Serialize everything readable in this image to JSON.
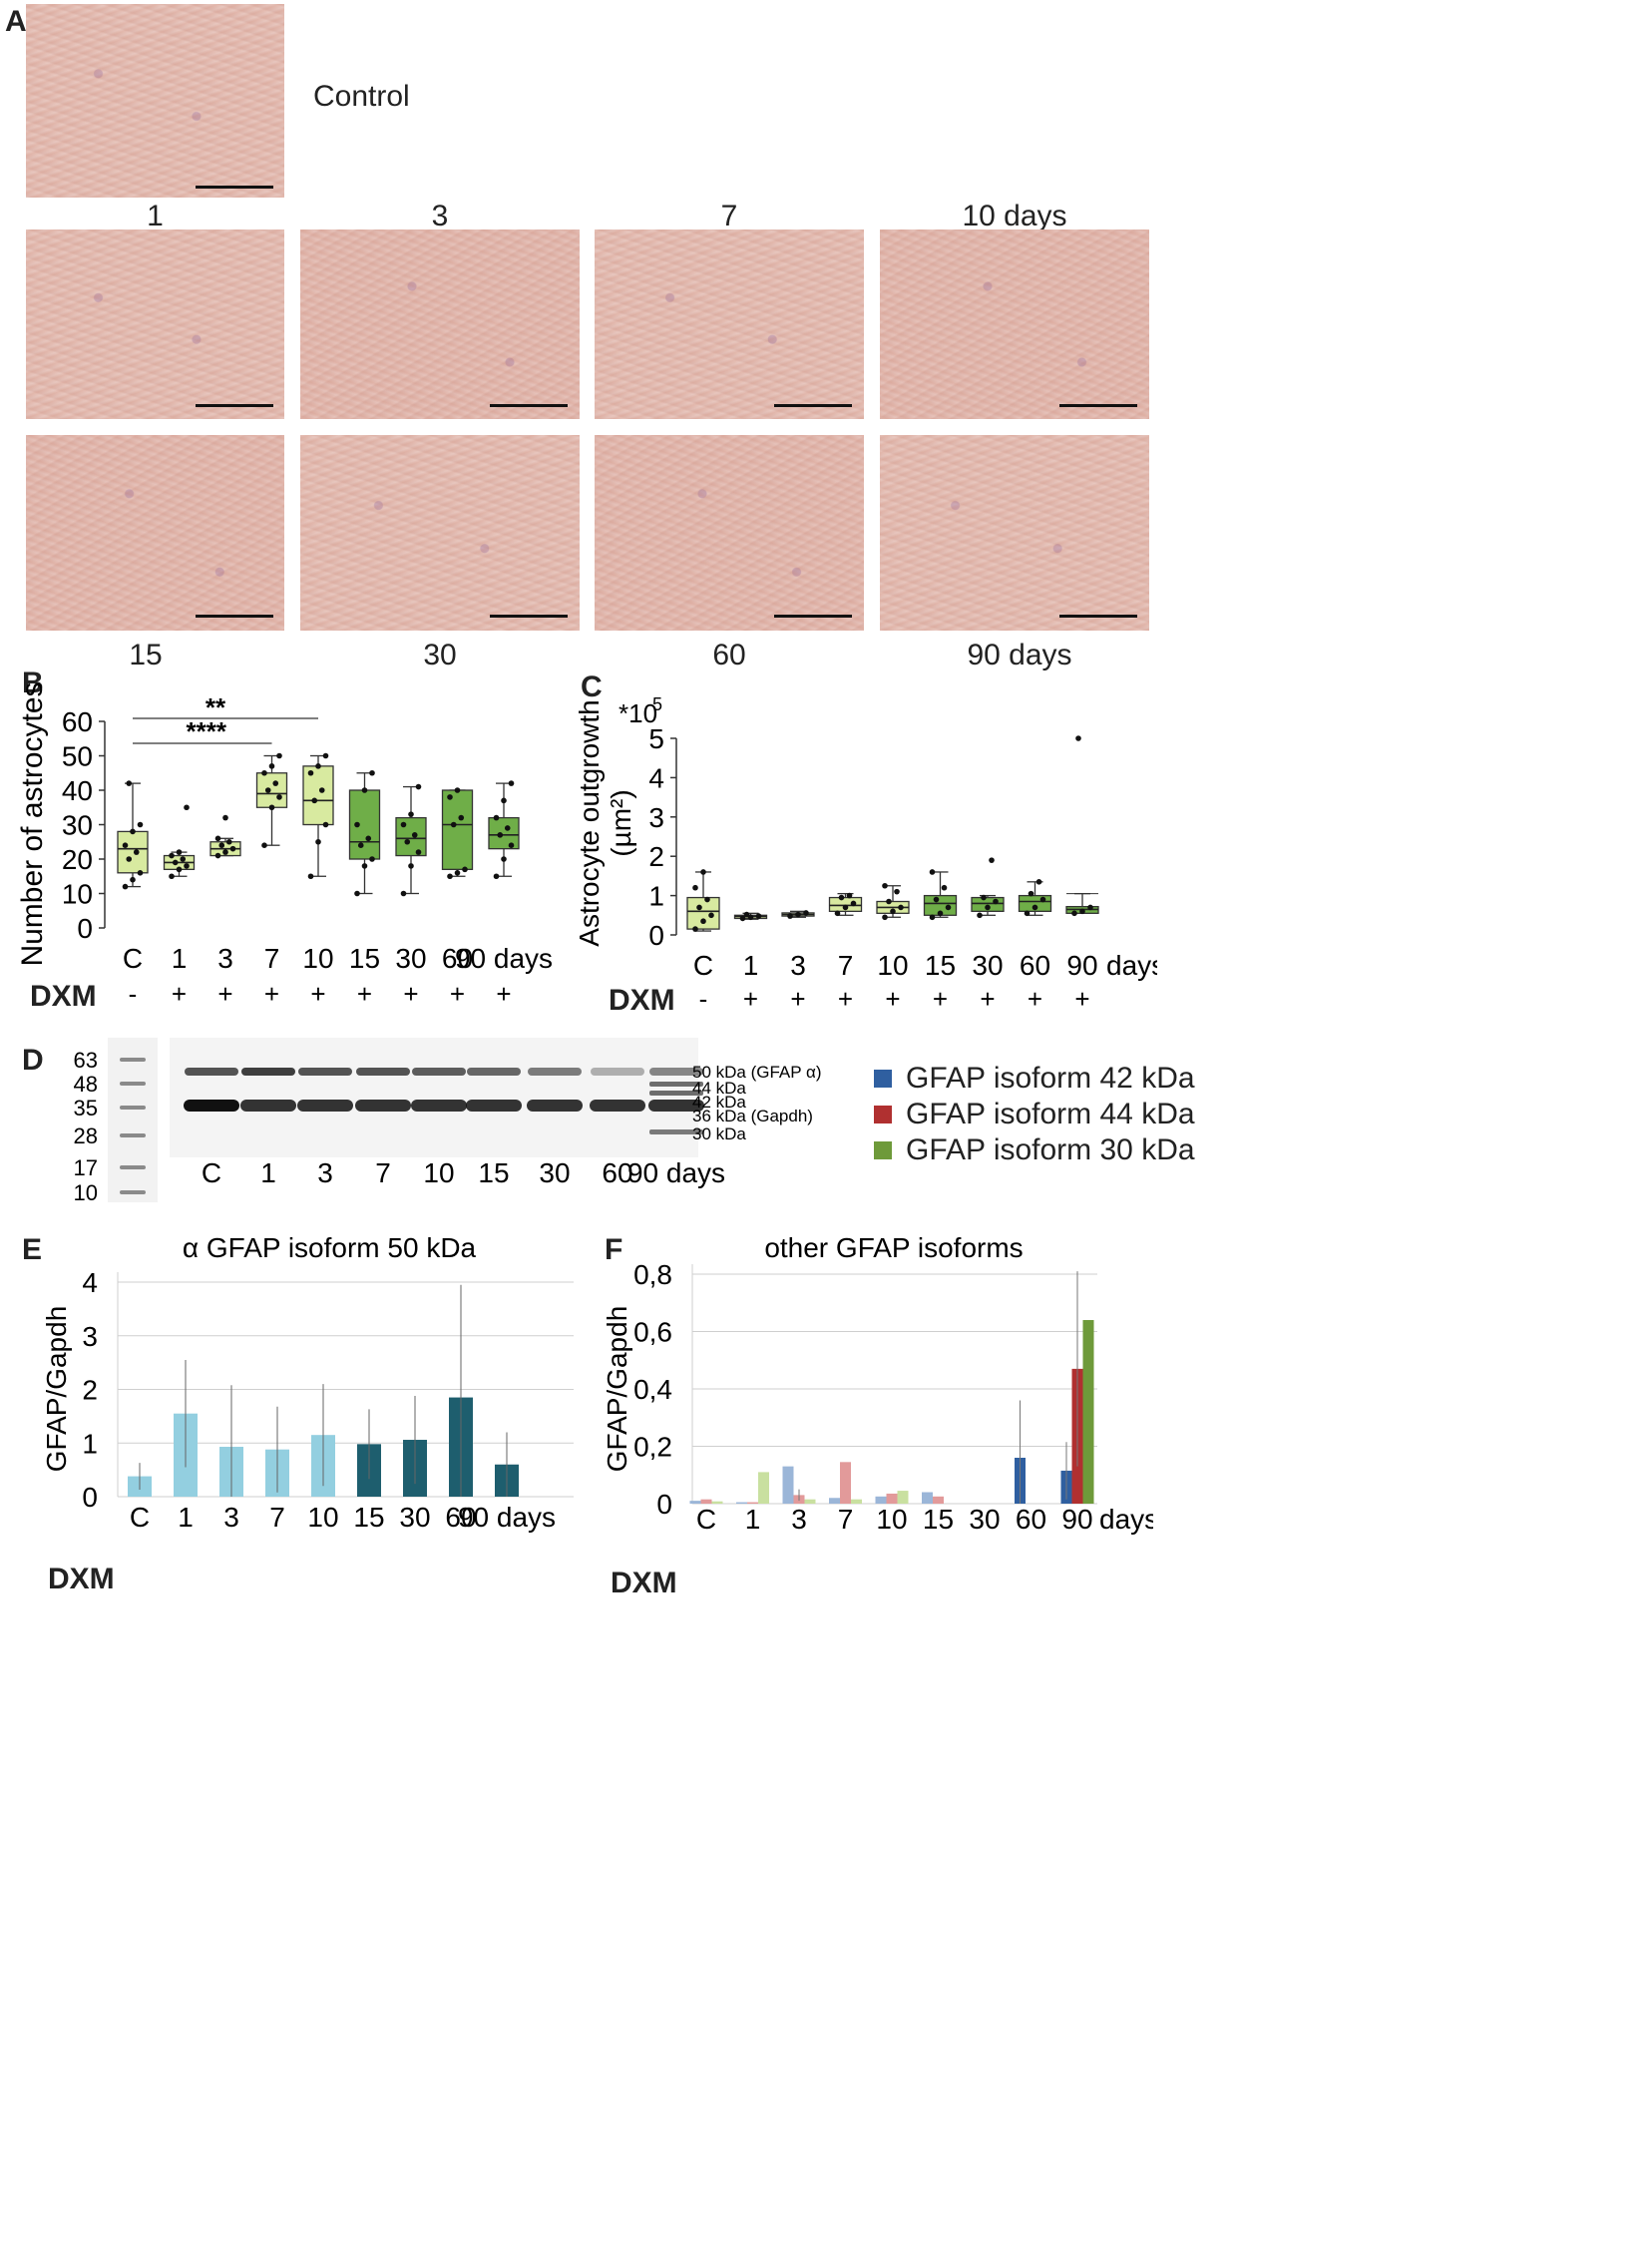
{
  "panels": {
    "a": "A",
    "b": "B",
    "c": "C",
    "d": "D",
    "e": "E",
    "f": "F"
  },
  "micro": {
    "control_label": "Control",
    "top_labels": [
      "1",
      "3",
      "7",
      "10 days"
    ],
    "bottom_labels": [
      "15",
      "30",
      "60",
      "90 days"
    ]
  },
  "colors": {
    "light_green": "#d8eaa0",
    "dark_green": "#6fae48",
    "light_blue": "#93cfe0",
    "dark_teal": "#1e5e6e",
    "iso42": "#2f5fa0",
    "iso44": "#b03030",
    "iso30": "#6e9a3a"
  },
  "dxm": {
    "label": "DXM",
    "signs": [
      "-",
      "+",
      "+",
      "+",
      "+",
      "+",
      "+",
      "+",
      "+"
    ]
  },
  "chart_data": [
    {
      "id": "B",
      "type": "box",
      "ylabel": "Number of astrocytes",
      "ylim": [
        0,
        60
      ],
      "yticks": [
        "0",
        "10",
        "20",
        "30",
        "40",
        "50",
        "60"
      ],
      "categories": [
        "C",
        "1",
        "3",
        "7",
        "10",
        "15",
        "30",
        "60",
        "90 days"
      ],
      "series": [
        {
          "cat": "C",
          "min": 12,
          "q1": 16,
          "median": 23,
          "q3": 28,
          "max": 42,
          "points": [
            12,
            14,
            16,
            20,
            22,
            24,
            28,
            30,
            42
          ]
        },
        {
          "cat": "1",
          "min": 15,
          "q1": 17,
          "median": 19,
          "q3": 21,
          "max": 22,
          "points": [
            15,
            17,
            18,
            19,
            20,
            21,
            22,
            35
          ]
        },
        {
          "cat": "3",
          "min": 21,
          "q1": 21,
          "median": 23,
          "q3": 25,
          "max": 26,
          "points": [
            21,
            22,
            23,
            24,
            25,
            26,
            32
          ]
        },
        {
          "cat": "7",
          "min": 24,
          "q1": 35,
          "median": 39,
          "q3": 45,
          "max": 50,
          "points": [
            24,
            35,
            38,
            40,
            42,
            45,
            47,
            50
          ]
        },
        {
          "cat": "10",
          "min": 15,
          "q1": 30,
          "median": 37,
          "q3": 47,
          "max": 50,
          "points": [
            15,
            25,
            30,
            37,
            40,
            45,
            47,
            50
          ]
        },
        {
          "cat": "15",
          "min": 10,
          "q1": 20,
          "median": 25,
          "q3": 40,
          "max": 45,
          "points": [
            10,
            18,
            20,
            24,
            26,
            30,
            40,
            45
          ]
        },
        {
          "cat": "30",
          "min": 10,
          "q1": 21,
          "median": 26,
          "q3": 32,
          "max": 41,
          "points": [
            10,
            18,
            22,
            25,
            27,
            30,
            33,
            41
          ]
        },
        {
          "cat": "60",
          "min": 15,
          "q1": 17,
          "median": 30,
          "q3": 40,
          "max": 40,
          "points": [
            15,
            16,
            17,
            30,
            32,
            38,
            40
          ]
        },
        {
          "cat": "90",
          "min": 15,
          "q1": 23,
          "median": 27,
          "q3": 32,
          "max": 42,
          "points": [
            15,
            20,
            24,
            27,
            29,
            32,
            37,
            42
          ]
        }
      ],
      "significance": [
        {
          "label": "**",
          "from": "C",
          "to": "10"
        },
        {
          "label": "****",
          "from": "C",
          "to": "7"
        }
      ]
    },
    {
      "id": "C",
      "type": "box",
      "ylabel": "Astrocyte outgrowth",
      "ylabel2": "(µm²)",
      "yunit": "*10",
      "yunit_exp": "5",
      "ylim": [
        0,
        5
      ],
      "yticks": [
        "0",
        "1",
        "2",
        "3",
        "4",
        "5"
      ],
      "categories": [
        "C",
        "1",
        "3",
        "7",
        "10",
        "15",
        "30",
        "60",
        "90"
      ],
      "extra_x_label": "days",
      "series": [
        {
          "cat": "C",
          "min": 0.1,
          "q1": 0.15,
          "median": 0.6,
          "q3": 0.95,
          "max": 1.6,
          "points": [
            0.15,
            0.35,
            0.5,
            0.7,
            0.9,
            1.2,
            1.6
          ]
        },
        {
          "cat": "1",
          "min": 0.4,
          "q1": 0.42,
          "median": 0.47,
          "q3": 0.5,
          "max": 0.55,
          "points": [
            0.42,
            0.45,
            0.48,
            0.52
          ]
        },
        {
          "cat": "3",
          "min": 0.45,
          "q1": 0.48,
          "median": 0.52,
          "q3": 0.56,
          "max": 0.6,
          "points": [
            0.48,
            0.52,
            0.56
          ]
        },
        {
          "cat": "7",
          "min": 0.5,
          "q1": 0.6,
          "median": 0.75,
          "q3": 0.95,
          "max": 1.05,
          "points": [
            0.55,
            0.7,
            0.8,
            0.95,
            1.0
          ]
        },
        {
          "cat": "10",
          "min": 0.45,
          "q1": 0.55,
          "median": 0.7,
          "q3": 0.85,
          "max": 1.25,
          "points": [
            0.45,
            0.6,
            0.7,
            0.85,
            1.1,
            1.25
          ]
        },
        {
          "cat": "15",
          "min": 0.45,
          "q1": 0.5,
          "median": 0.8,
          "q3": 1.0,
          "max": 1.6,
          "points": [
            0.45,
            0.55,
            0.7,
            0.9,
            1.2,
            1.6
          ]
        },
        {
          "cat": "30",
          "min": 0.5,
          "q1": 0.6,
          "median": 0.8,
          "q3": 0.95,
          "max": 1.0,
          "points": [
            0.5,
            0.7,
            0.85,
            0.95,
            1.9
          ]
        },
        {
          "cat": "60",
          "min": 0.5,
          "q1": 0.6,
          "median": 0.85,
          "q3": 1.0,
          "max": 1.35,
          "points": [
            0.55,
            0.7,
            0.9,
            1.05,
            1.35
          ]
        },
        {
          "cat": "90",
          "min": 0.55,
          "q1": 0.55,
          "median": 0.65,
          "q3": 0.72,
          "max": 1.05,
          "points": [
            0.55,
            0.6,
            0.7,
            5.0
          ]
        }
      ]
    },
    {
      "id": "E",
      "type": "bar",
      "title": "α GFAP isoform 50 kDa",
      "ylabel": "GFAP/Gapdh",
      "ylim": [
        0,
        4
      ],
      "yticks": [
        "0",
        "1",
        "2",
        "3",
        "4"
      ],
      "categories": [
        "C",
        "1",
        "3",
        "7",
        "10",
        "15",
        "30",
        "60",
        "90 days"
      ],
      "values": [
        0.38,
        1.55,
        0.93,
        0.88,
        1.15,
        0.98,
        1.06,
        1.85,
        0.6
      ],
      "errors": [
        0.25,
        1.0,
        1.15,
        0.8,
        0.95,
        0.65,
        0.82,
        2.1,
        0.6
      ]
    },
    {
      "id": "F",
      "type": "bar",
      "title": "other GFAP isoforms",
      "ylabel": "GFAP/Gapdh",
      "ylim": [
        0,
        0.8
      ],
      "yticks": [
        "0",
        "0,2",
        "0,4",
        "0,6",
        "0,8"
      ],
      "categories": [
        "C",
        "1",
        "3",
        "7",
        "10",
        "15",
        "30",
        "60",
        "90"
      ],
      "extra_x_label": "days",
      "series": [
        {
          "name": "GFAP isoform 42 kDa",
          "values": [
            0.01,
            0.005,
            0.13,
            0.02,
            0.025,
            0.04,
            0.0,
            0.16,
            0.115
          ],
          "errors": [
            0,
            0,
            0,
            0,
            0,
            0,
            0,
            0.2,
            0.1
          ]
        },
        {
          "name": "GFAP isoform 44 kDa",
          "values": [
            0.015,
            0.005,
            0.03,
            0.145,
            0.035,
            0.025,
            0.0,
            0.0,
            0.47
          ],
          "errors": [
            0,
            0,
            0.02,
            0,
            0,
            0,
            0,
            0,
            0.34
          ]
        },
        {
          "name": "GFAP isoform 30 kDa",
          "values": [
            0.008,
            0.11,
            0.015,
            0.015,
            0.045,
            0.0,
            0.0,
            0.0,
            0.64
          ],
          "errors": [
            0,
            0,
            0,
            0,
            0,
            0,
            0,
            0,
            0
          ]
        }
      ]
    }
  ],
  "blot": {
    "markers": [
      "63",
      "48",
      "35",
      "28",
      "17",
      "10"
    ],
    "lanes": [
      "C",
      "1",
      "3",
      "7",
      "10",
      "15",
      "30",
      "60",
      "90 days"
    ],
    "band_labels": [
      "50 kDa (GFAP α)",
      "44 kDa",
      "42 kDa",
      "36 kDa (Gapdh)",
      "30 kDa"
    ],
    "legend": [
      "GFAP isoform 42 kDa",
      "GFAP isoform 44 kDa",
      "GFAP isoform 30 kDa"
    ]
  }
}
